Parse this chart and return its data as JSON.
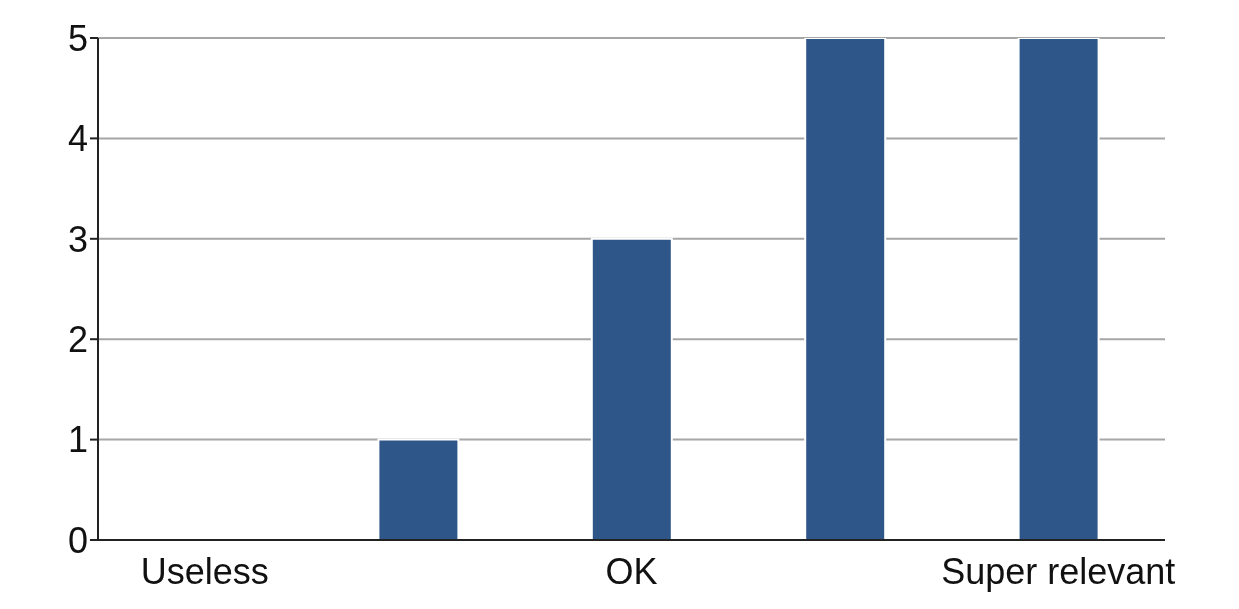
{
  "chart_data": {
    "type": "bar",
    "categories": [
      "Useless",
      null,
      "OK",
      null,
      "Super relevant"
    ],
    "values": [
      0,
      1,
      3,
      5,
      5
    ],
    "color": "#2e5689",
    "ylim": [
      0,
      5
    ],
    "yticks": [
      0,
      1,
      2,
      3,
      4,
      5
    ],
    "grid": "y"
  }
}
